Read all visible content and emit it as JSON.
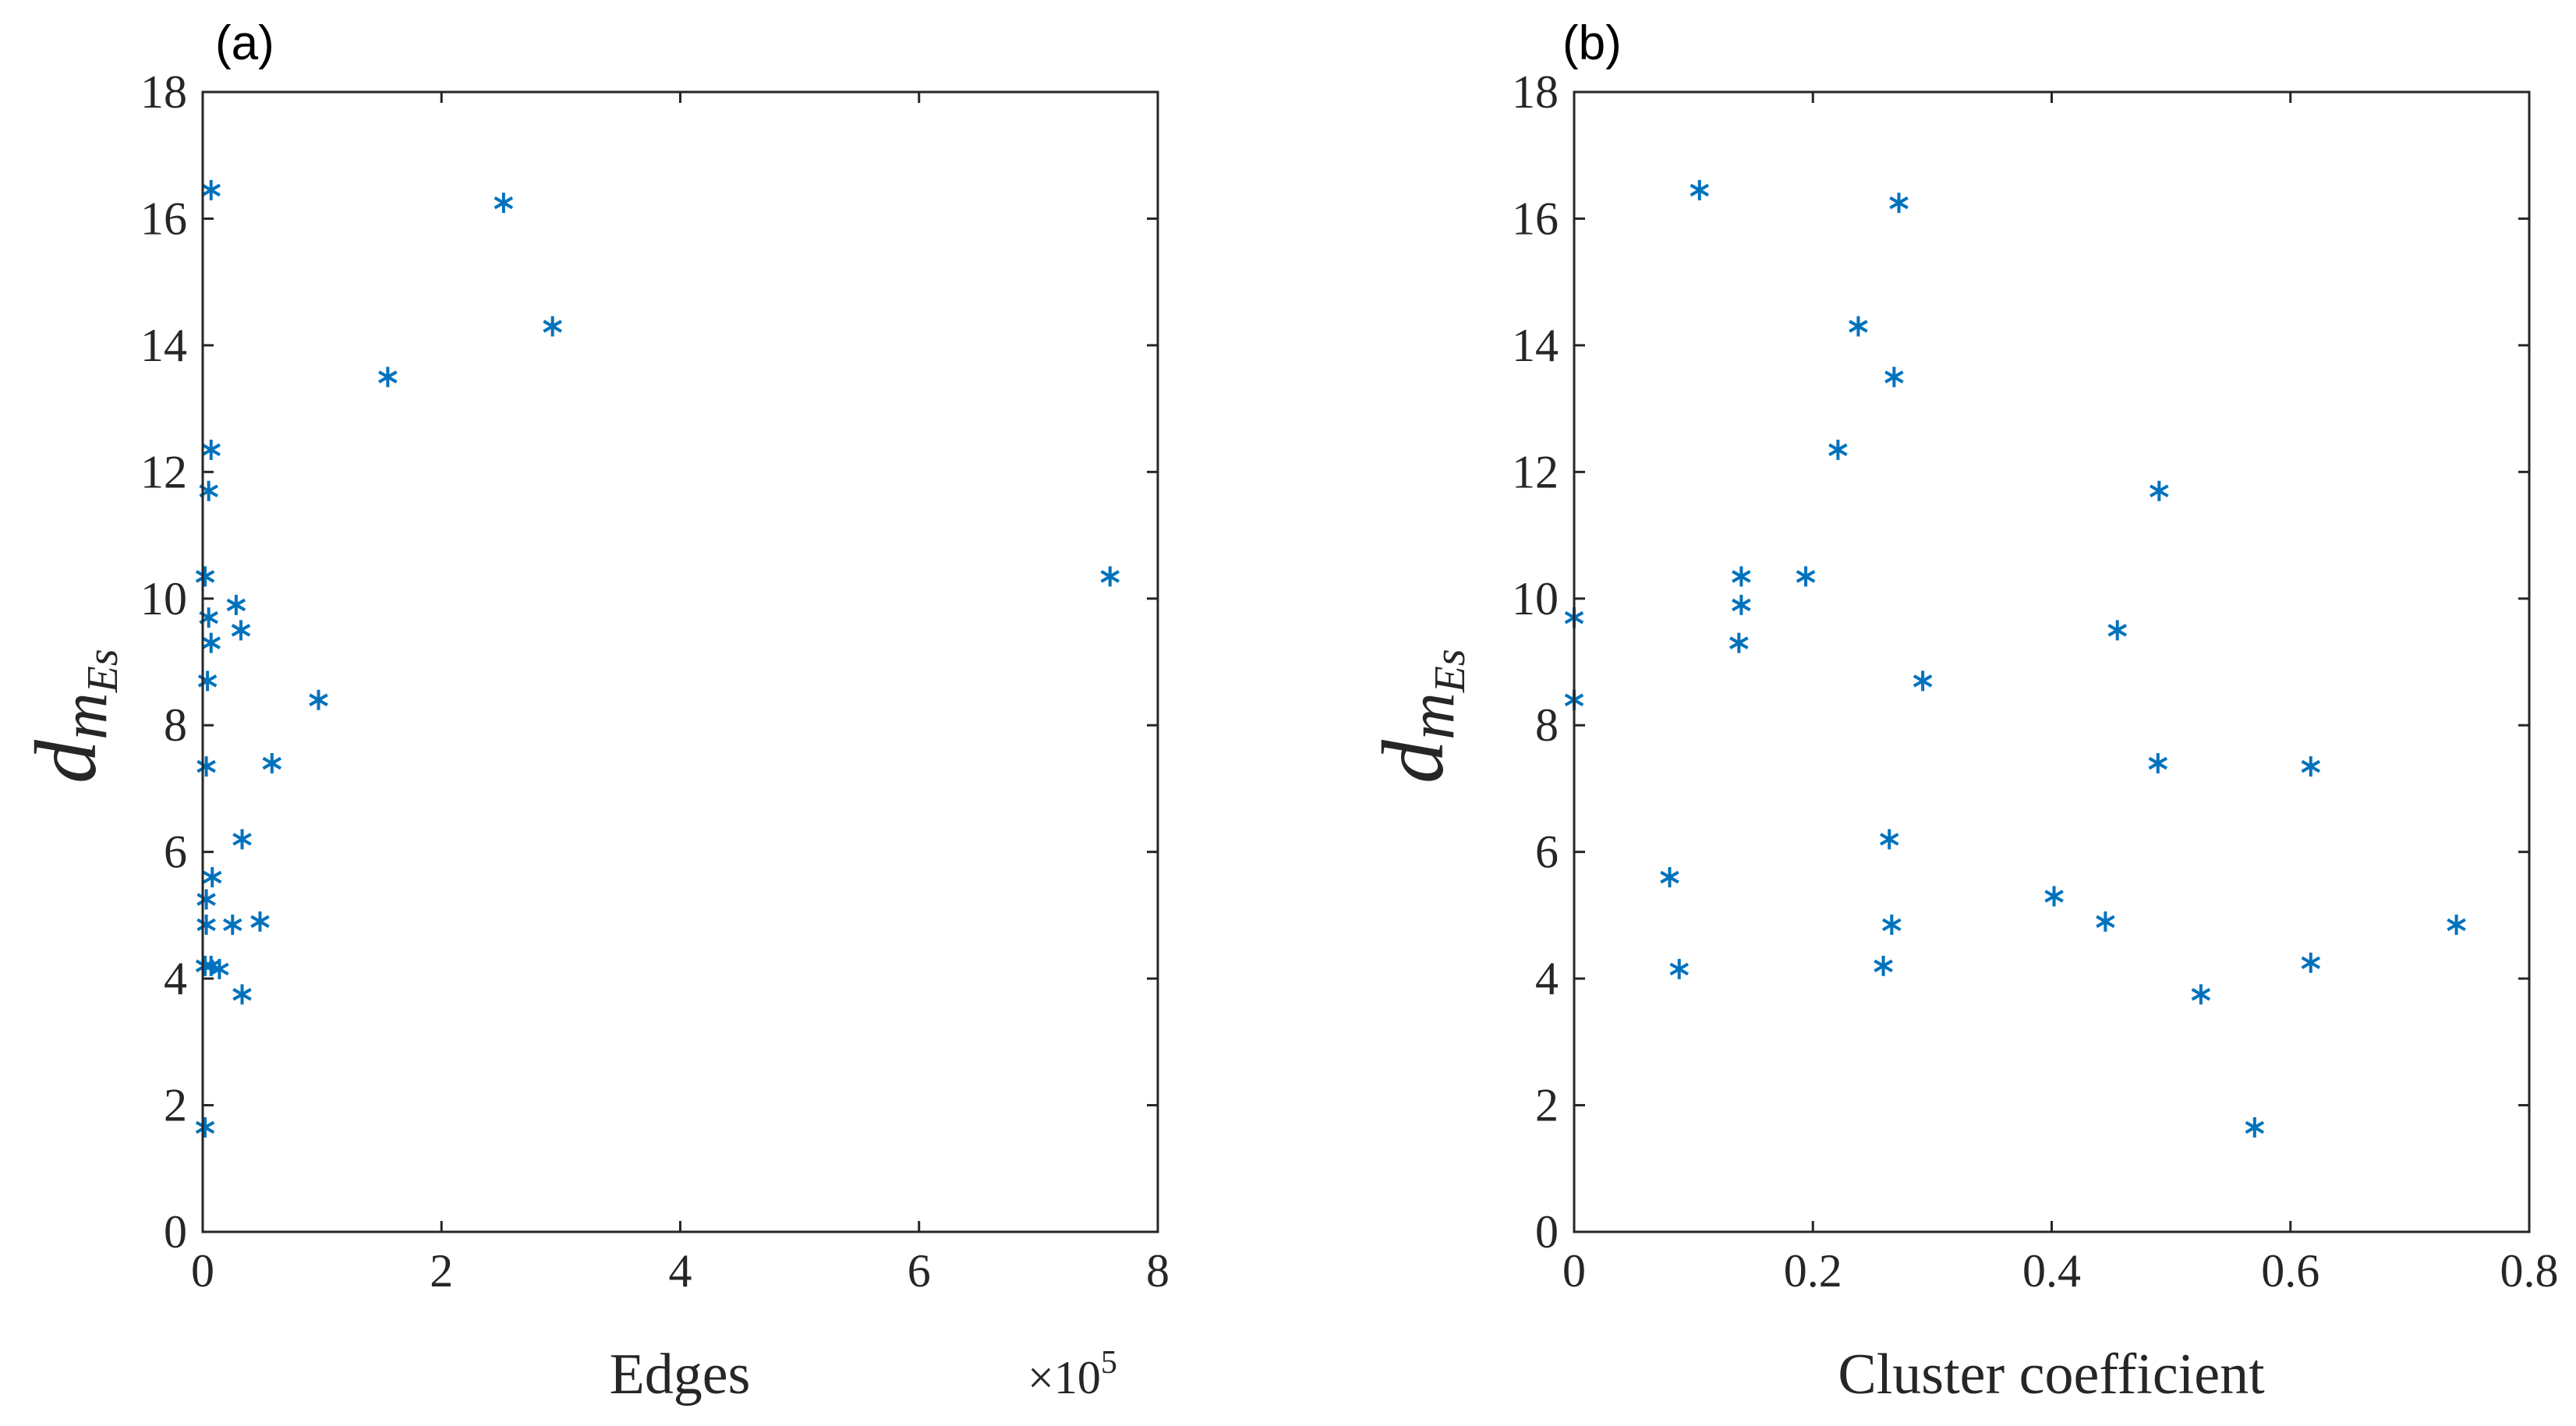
{
  "figure": {
    "marker_color": "#0072BD",
    "axis_color": "#262626"
  },
  "chart_data": [
    {
      "type": "scatter",
      "panel_label": "(a)",
      "title": "",
      "xlabel": "Edges",
      "ylabel_main": "d",
      "ylabel_sub": "m",
      "ylabel_subsub": "Es",
      "x_multiplier": "×10",
      "x_multiplier_exponent": "5",
      "xlim": [
        0,
        8
      ],
      "ylim": [
        0,
        18
      ],
      "xticks": [
        0,
        2,
        4,
        6,
        8
      ],
      "yticks": [
        0,
        2,
        4,
        6,
        8,
        10,
        12,
        14,
        16,
        18
      ],
      "marker": "asterisk",
      "x": [
        0.07,
        2.52,
        2.93,
        1.55,
        0.07,
        0.05,
        0.02,
        0.05,
        0.28,
        0.32,
        0.07,
        0.04,
        0.97,
        0.03,
        0.58,
        0.33,
        0.08,
        0.03,
        0.25,
        0.48,
        0.03,
        0.02,
        0.07,
        0.14,
        0.33,
        0.02,
        7.6
      ],
      "y": [
        16.45,
        16.25,
        14.3,
        13.5,
        12.35,
        11.7,
        10.35,
        9.7,
        9.9,
        9.5,
        9.3,
        8.7,
        8.4,
        7.35,
        7.4,
        6.2,
        5.6,
        5.25,
        4.85,
        4.9,
        4.85,
        4.2,
        4.2,
        4.15,
        3.75,
        1.65,
        10.35
      ]
    },
    {
      "type": "scatter",
      "panel_label": "(b)",
      "title": "",
      "xlabel": "Cluster coefficient",
      "ylabel_main": "d",
      "ylabel_sub": "m",
      "ylabel_subsub": "Es",
      "xlim": [
        0,
        0.8
      ],
      "ylim": [
        0,
        18
      ],
      "xticks": [
        0,
        0.2,
        0.4,
        0.6,
        0.8
      ],
      "yticks": [
        0,
        2,
        4,
        6,
        8,
        10,
        12,
        14,
        16,
        18
      ],
      "marker": "asterisk",
      "x": [
        0.105,
        0.272,
        0.238,
        0.268,
        0.221,
        0.49,
        0.14,
        0.194,
        0.14,
        0.0,
        0.138,
        0.455,
        0.292,
        0.0,
        0.489,
        0.617,
        0.264,
        0.08,
        0.402,
        0.445,
        0.266,
        0.739,
        0.088,
        0.259,
        0.617,
        0.525,
        0.57
      ],
      "y": [
        16.45,
        16.25,
        14.3,
        13.5,
        12.35,
        11.7,
        10.35,
        10.35,
        9.9,
        9.7,
        9.3,
        9.5,
        8.7,
        8.4,
        7.4,
        7.35,
        6.2,
        5.6,
        5.3,
        4.9,
        4.85,
        4.85,
        4.15,
        4.2,
        4.25,
        3.75,
        1.65
      ]
    }
  ]
}
